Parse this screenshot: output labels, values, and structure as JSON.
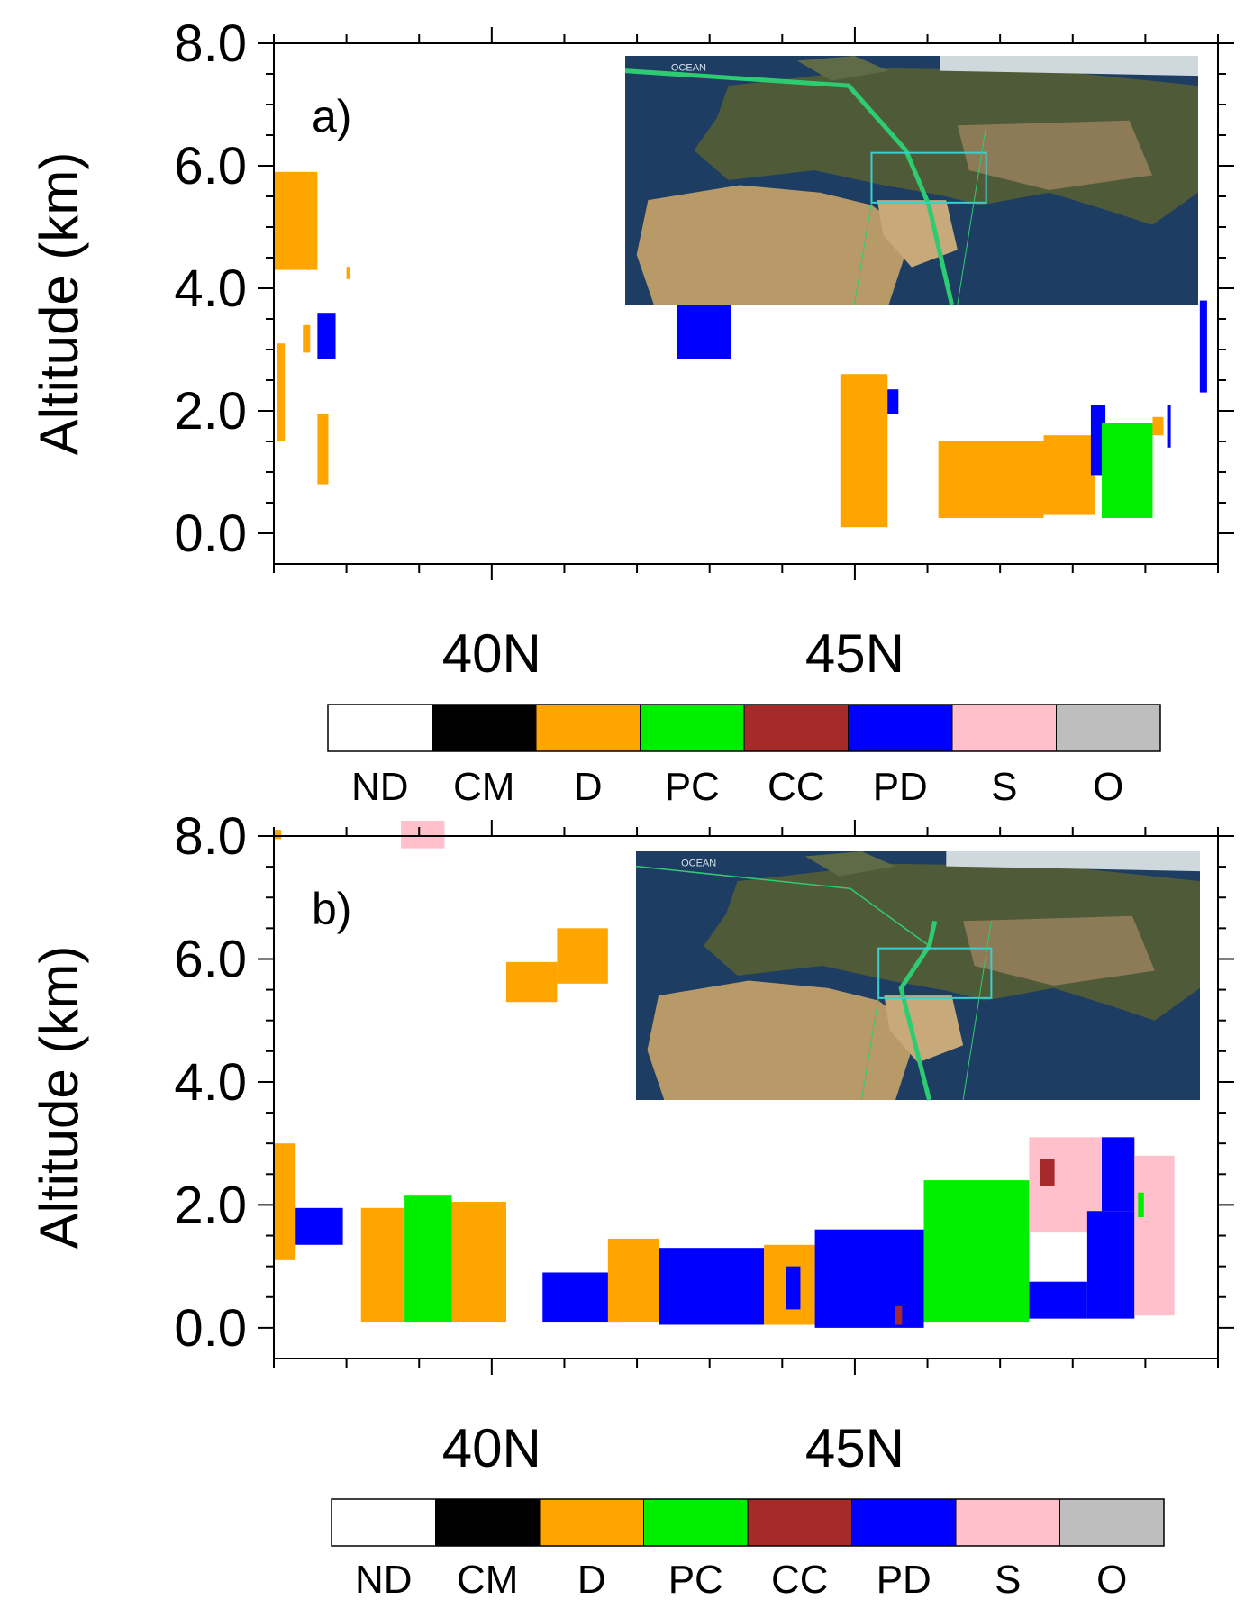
{
  "chart_data": [
    {
      "type": "heatmap",
      "panel_label": "a)",
      "ylabel": "Altitude (km)",
      "ylim": [
        -0.5,
        8.0
      ],
      "xlim": [
        37.0,
        50.0
      ],
      "yticks": [
        {
          "value": 0,
          "label": "0.0"
        },
        {
          "value": 2,
          "label": "2.0"
        },
        {
          "value": 4,
          "label": "4.0"
        },
        {
          "value": 6,
          "label": "6.0"
        },
        {
          "value": 8,
          "label": "8.0"
        }
      ],
      "xticks": [
        {
          "value": 40,
          "label": "40N"
        },
        {
          "value": 45,
          "label": "45N"
        }
      ],
      "inset": {
        "description_label": "OCEAN"
      },
      "regions": [
        {
          "cls": "D",
          "x0": 37.0,
          "x1": 37.6,
          "y0": 4.3,
          "y1": 5.9
        },
        {
          "cls": "D",
          "x0": 37.05,
          "x1": 37.15,
          "y0": 1.5,
          "y1": 3.1
        },
        {
          "cls": "D",
          "x0": 37.4,
          "x1": 37.5,
          "y0": 2.95,
          "y1": 3.4
        },
        {
          "cls": "D",
          "x0": 37.6,
          "x1": 37.75,
          "y0": 0.8,
          "y1": 1.95
        },
        {
          "cls": "D",
          "x0": 38.0,
          "x1": 38.05,
          "y0": 4.15,
          "y1": 4.35
        },
        {
          "cls": "PD",
          "x0": 37.6,
          "x1": 37.85,
          "y0": 2.85,
          "y1": 3.6
        },
        {
          "cls": "PD",
          "x0": 42.55,
          "x1": 43.3,
          "y0": 2.85,
          "y1": 3.9
        },
        {
          "cls": "D",
          "x0": 44.8,
          "x1": 45.45,
          "y0": 0.1,
          "y1": 2.6
        },
        {
          "cls": "PD",
          "x0": 45.45,
          "x1": 45.6,
          "y0": 1.95,
          "y1": 2.35
        },
        {
          "cls": "D",
          "x0": 46.15,
          "x1": 47.6,
          "y0": 0.25,
          "y1": 1.5
        },
        {
          "cls": "D",
          "x0": 47.6,
          "x1": 48.3,
          "y0": 0.3,
          "y1": 1.6
        },
        {
          "cls": "PD",
          "x0": 48.25,
          "x1": 48.45,
          "y0": 0.95,
          "y1": 2.1
        },
        {
          "cls": "PC",
          "x0": 48.4,
          "x1": 49.1,
          "y0": 0.25,
          "y1": 1.8
        },
        {
          "cls": "D",
          "x0": 49.1,
          "x1": 49.25,
          "y0": 1.6,
          "y1": 1.9
        },
        {
          "cls": "PD",
          "x0": 49.75,
          "x1": 49.85,
          "y0": 2.3,
          "y1": 3.8
        },
        {
          "cls": "PD",
          "x0": 49.3,
          "x1": 49.35,
          "y0": 1.4,
          "y1": 2.1
        }
      ]
    },
    {
      "type": "heatmap",
      "panel_label": "b)",
      "ylabel": "Altitude (km)",
      "ylim": [
        -0.5,
        8.0
      ],
      "xlim": [
        37.0,
        50.0
      ],
      "yticks": [
        {
          "value": 0,
          "label": "0.0"
        },
        {
          "value": 2,
          "label": "2.0"
        },
        {
          "value": 4,
          "label": "4.0"
        },
        {
          "value": 6,
          "label": "6.0"
        },
        {
          "value": 8,
          "label": "8.0"
        }
      ],
      "xticks": [
        {
          "value": 40,
          "label": "40N"
        },
        {
          "value": 45,
          "label": "45N"
        }
      ],
      "inset": {
        "description_label": "OCEAN"
      },
      "regions": [
        {
          "cls": "S",
          "x0": 38.75,
          "x1": 39.35,
          "y0": 7.8,
          "y1": 8.25
        },
        {
          "cls": "D",
          "x0": 37.0,
          "x1": 37.1,
          "y0": 7.95,
          "y1": 8.1
        },
        {
          "cls": "D",
          "x0": 37.0,
          "x1": 37.3,
          "y0": 1.1,
          "y1": 3.0
        },
        {
          "cls": "PD",
          "x0": 37.3,
          "x1": 37.95,
          "y0": 1.35,
          "y1": 1.95
        },
        {
          "cls": "D",
          "x0": 38.2,
          "x1": 38.8,
          "y0": 0.1,
          "y1": 1.95
        },
        {
          "cls": "PC",
          "x0": 38.8,
          "x1": 39.45,
          "y0": 0.1,
          "y1": 2.15
        },
        {
          "cls": "D",
          "x0": 39.45,
          "x1": 40.2,
          "y0": 0.1,
          "y1": 2.05
        },
        {
          "cls": "D",
          "x0": 40.2,
          "x1": 40.9,
          "y0": 5.3,
          "y1": 5.95
        },
        {
          "cls": "D",
          "x0": 40.9,
          "x1": 41.6,
          "y0": 5.6,
          "y1": 6.5
        },
        {
          "cls": "PD",
          "x0": 40.7,
          "x1": 41.8,
          "y0": 0.1,
          "y1": 0.9
        },
        {
          "cls": "D",
          "x0": 41.6,
          "x1": 42.3,
          "y0": 0.1,
          "y1": 1.45
        },
        {
          "cls": "PD",
          "x0": 42.3,
          "x1": 43.75,
          "y0": 0.05,
          "y1": 1.3
        },
        {
          "cls": "D",
          "x0": 43.75,
          "x1": 44.45,
          "y0": 0.05,
          "y1": 1.35
        },
        {
          "cls": "PD",
          "x0": 44.05,
          "x1": 44.25,
          "y0": 0.3,
          "y1": 1.0
        },
        {
          "cls": "PD",
          "x0": 44.45,
          "x1": 45.95,
          "y0": 0.0,
          "y1": 1.6
        },
        {
          "cls": "CC",
          "x0": 45.55,
          "x1": 45.65,
          "y0": 0.05,
          "y1": 0.35
        },
        {
          "cls": "PC",
          "x0": 45.95,
          "x1": 47.4,
          "y0": 0.1,
          "y1": 2.4
        },
        {
          "cls": "S",
          "x0": 47.4,
          "x1": 48.85,
          "y0": 1.55,
          "y1": 3.1
        },
        {
          "cls": "CC",
          "x0": 47.55,
          "x1": 47.75,
          "y0": 2.3,
          "y1": 2.75
        },
        {
          "cls": "PD",
          "x0": 47.4,
          "x1": 48.2,
          "y0": 0.15,
          "y1": 0.75
        },
        {
          "cls": "PD",
          "x0": 48.2,
          "x1": 48.85,
          "y0": 0.15,
          "y1": 1.9
        },
        {
          "cls": "PD",
          "x0": 48.4,
          "x1": 48.85,
          "y0": 1.9,
          "y1": 3.1
        },
        {
          "cls": "S",
          "x0": 48.85,
          "x1": 49.4,
          "y0": 0.2,
          "y1": 2.8
        },
        {
          "cls": "PC",
          "x0": 48.9,
          "x1": 48.98,
          "y0": 1.8,
          "y1": 2.2
        }
      ]
    }
  ],
  "legend": {
    "items": [
      {
        "label": "ND",
        "color": "#ffffff"
      },
      {
        "label": "CM",
        "color": "#000000"
      },
      {
        "label": "D",
        "color": "#ffa500"
      },
      {
        "label": "PC",
        "color": "#00ee00"
      },
      {
        "label": "CC",
        "color": "#a52a2a"
      },
      {
        "label": "PD",
        "color": "#0000ff"
      },
      {
        "label": "S",
        "color": "#ffc0cb"
      },
      {
        "label": "O",
        "color": "#bebebe"
      }
    ]
  },
  "colors": {
    "D": "#ffa500",
    "PD": "#0000ff",
    "PC": "#00ee00",
    "CC": "#a52a2a",
    "S": "#ffc0cb",
    "track": "#2ecc71",
    "box": "#3ccfcf"
  }
}
